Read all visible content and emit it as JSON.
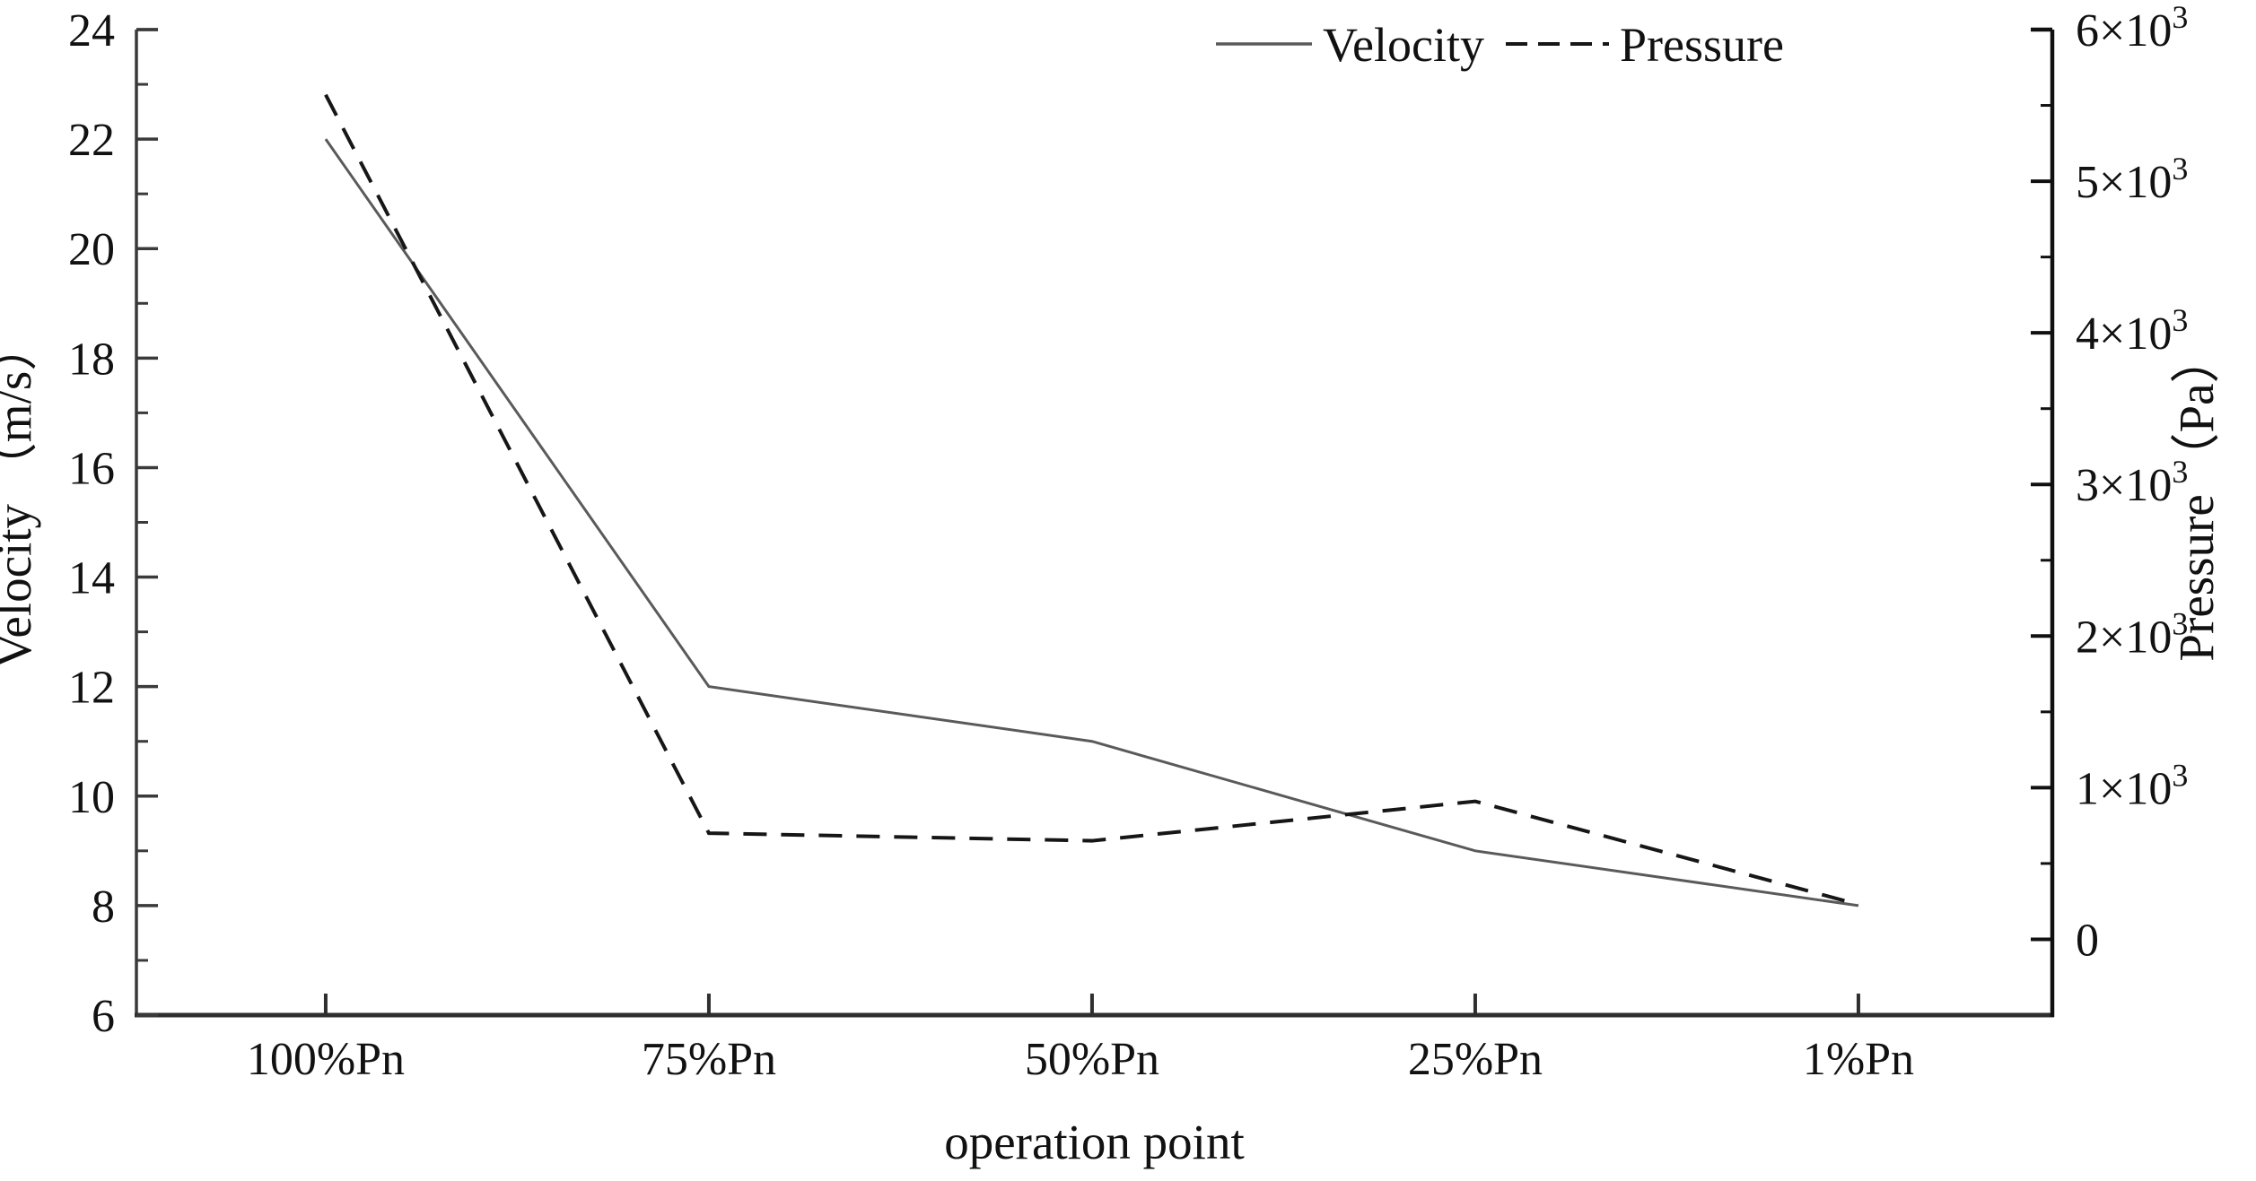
{
  "figure": {
    "background": "#ffffff"
  },
  "chart_data": {
    "type": "line",
    "categories": [
      "100%Pn",
      "75%Pn",
      "50%Pn",
      "25%Pn",
      "1%Pn"
    ],
    "series": [
      {
        "name": "Velocity",
        "axis": "left",
        "line_style": "solid",
        "color": "#5a5a5a",
        "values": [
          22,
          12,
          11,
          9,
          8
        ]
      },
      {
        "name": "Pressure",
        "axis": "right",
        "line_style": "dashed",
        "color": "#161616",
        "values": [
          5570,
          700,
          650,
          910,
          230
        ]
      }
    ],
    "xlabel": "operation point",
    "ylabel_left": "Velocity （m/s）",
    "ylabel_right": "Pressure （Pa）",
    "left_axis": {
      "min": 6,
      "max": 24,
      "major_step": 2,
      "minor_step": 1,
      "tick_labels": [
        "6",
        "8",
        "10",
        "12",
        "14",
        "16",
        "18",
        "20",
        "22",
        "24"
      ]
    },
    "right_axis": {
      "min": -500,
      "max": 6000,
      "major_tick_values": [
        0,
        1000,
        2000,
        3000,
        4000,
        5000,
        6000
      ],
      "minor_tick_values": [
        500,
        1500,
        2500,
        3500,
        4500,
        5500
      ],
      "tick_labels": [
        "0",
        "1×10³",
        "2×10³",
        "3×10³",
        "4×10³",
        "5×10³",
        "6×10³"
      ]
    },
    "legend": {
      "position": "top-right",
      "entries": [
        {
          "label": "Velocity",
          "style": "solid"
        },
        {
          "label": "Pressure",
          "style": "dashed"
        }
      ]
    },
    "grid": false
  },
  "colors": {
    "axis_left": "#3a3a3a",
    "axis_bottom": "#2e2e2e",
    "axis_right": "#101010",
    "text": "#111111"
  }
}
